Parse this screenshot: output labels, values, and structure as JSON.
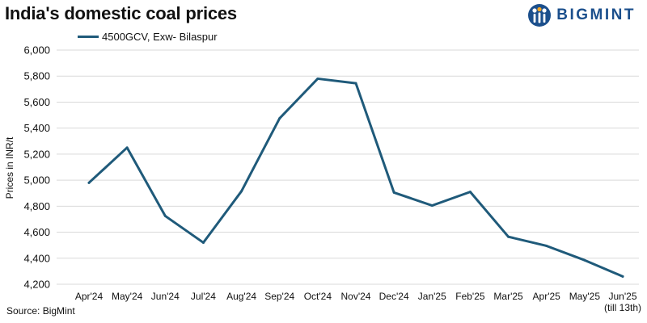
{
  "header": {
    "title": "India's domestic coal prices",
    "brand": "BIGMINT"
  },
  "footer": {
    "source": "Source: BigMint"
  },
  "colors": {
    "series": "#1f5a7a",
    "grid": "#d9d9d9",
    "brand": "#1b4f8c"
  },
  "chart_data": {
    "type": "line",
    "title": "India's domestic coal prices",
    "xlabel": "",
    "ylabel": "Prices in INR/t",
    "categories": [
      "Apr'24",
      "May'24",
      "Jun'24",
      "Jul'24",
      "Aug'24",
      "Sep'24",
      "Oct'24",
      "Nov'24",
      "Dec'24",
      "Jan'25",
      "Feb'25",
      "Mar'25",
      "Apr'25",
      "May'25",
      "Jun'25"
    ],
    "category_notes": [
      "",
      "",
      "",
      "",
      "",
      "",
      "",
      "",
      "",
      "",
      "",
      "",
      "",
      "",
      "(till 13th)"
    ],
    "series": [
      {
        "name": "4500GCV, Exw- Bilaspur",
        "values": [
          4980,
          5250,
          4725,
          4520,
          4915,
          5475,
          5780,
          5745,
          4905,
          4805,
          4910,
          4565,
          4495,
          4385,
          4260
        ]
      }
    ],
    "ylim": [
      4200,
      6000
    ],
    "yticks": [
      4200,
      4400,
      4600,
      4800,
      5000,
      5200,
      5400,
      5600,
      5800,
      6000
    ],
    "ytick_labels": [
      "4,200",
      "4,400",
      "4,600",
      "4,800",
      "5,000",
      "5,200",
      "5,400",
      "5,600",
      "5,800",
      "6,000"
    ],
    "grid": true,
    "legend": "top-left"
  }
}
